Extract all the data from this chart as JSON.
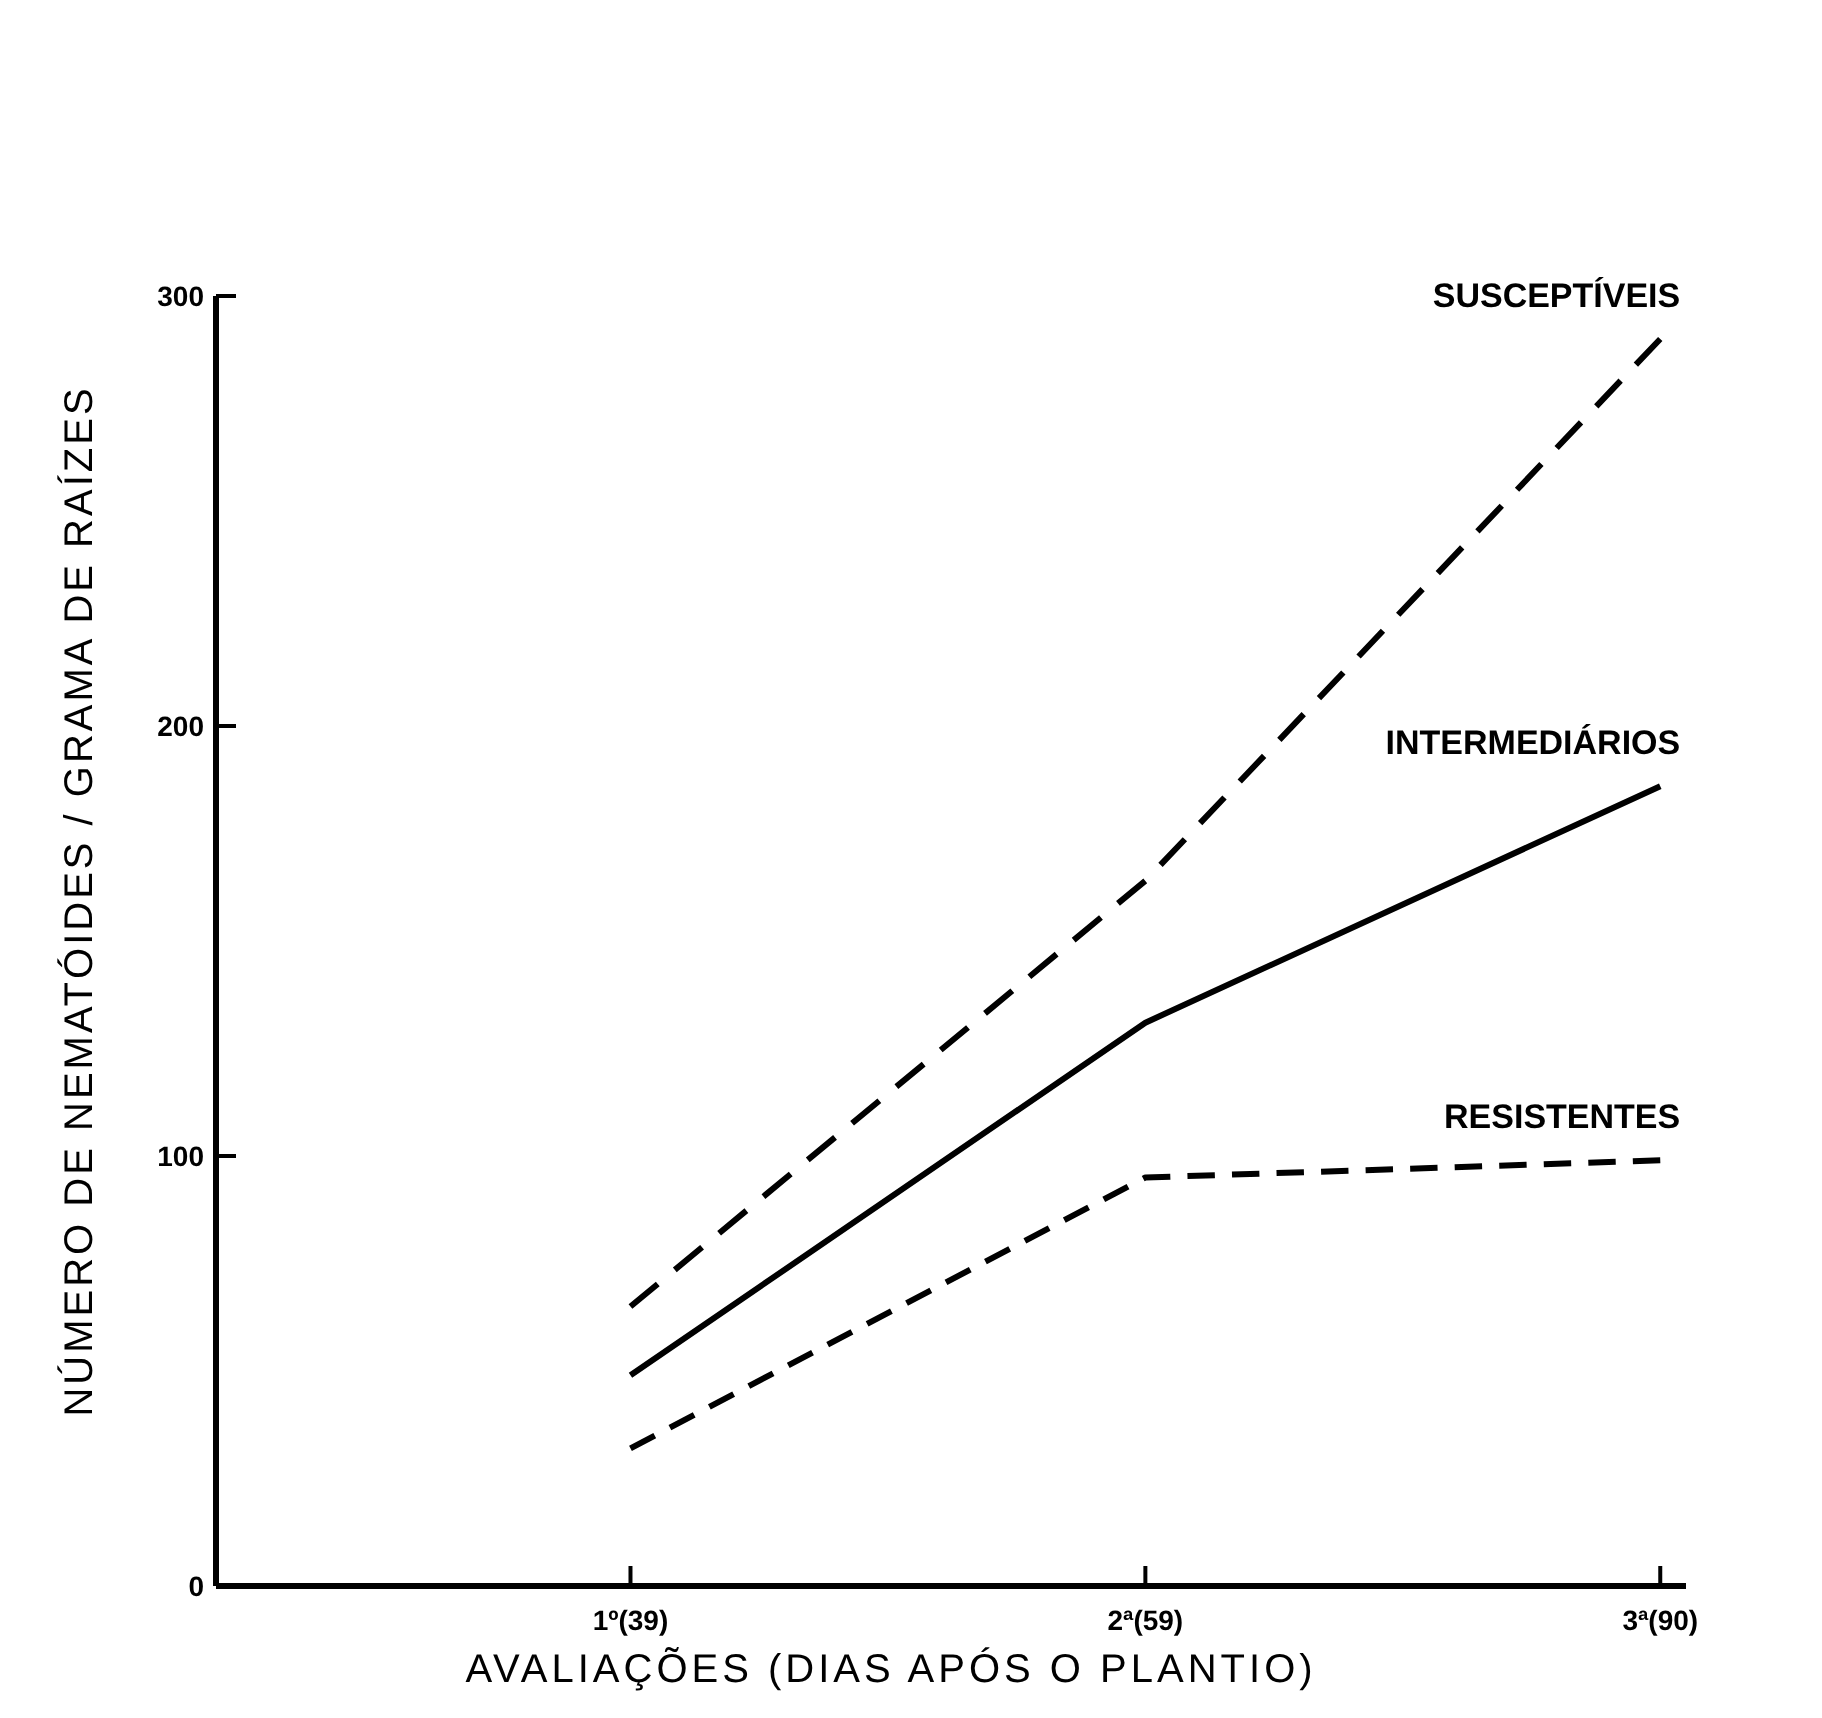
{
  "chart_data": {
    "type": "line",
    "xlabel": "AVALIAÇÕES (DIAS APÓS O PLANTIO)",
    "ylabel": "NÚMERO DE NEMATÓIDES / GRAMA DE RAÍZES",
    "categories": [
      "1º(39)",
      "2ª(59)",
      "3ª(90)"
    ],
    "ylim": [
      0,
      300
    ],
    "yticks": [
      0,
      100,
      200,
      300
    ],
    "grid": false,
    "legend": false,
    "marker": "none",
    "series": [
      {
        "name": "SUSCEPTÍVEIS",
        "color": "#000000",
        "line_style": "dashed",
        "values": [
          65,
          164,
          290
        ]
      },
      {
        "name": "INTERMEDIÁRIOS",
        "color": "#000000",
        "line_style": "solid",
        "values": [
          49,
          131,
          186
        ]
      },
      {
        "name": "RESISTENTES",
        "color": "#000000",
        "line_style": "dashed",
        "values": [
          32,
          95,
          99
        ]
      }
    ]
  }
}
